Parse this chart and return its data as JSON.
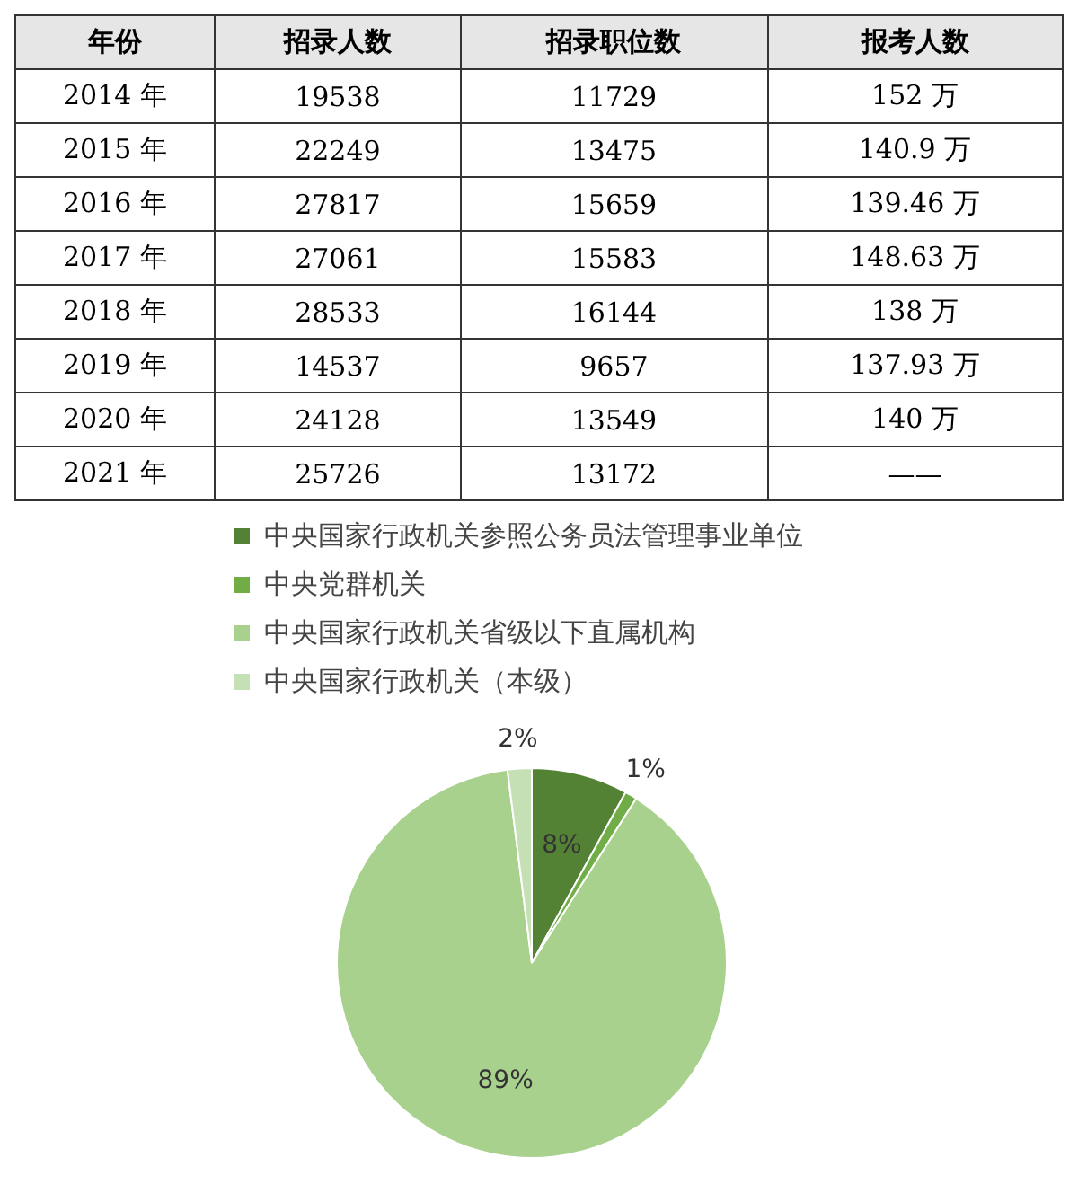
{
  "chart_data": [
    {
      "type": "heatmap",
      "ylabel": "年份",
      "categories": [
        "招录人数",
        "招录职位数",
        "报考人数"
      ],
      "y_categories": [
        "2014 年",
        "2015 年",
        "2016 年",
        "2017 年",
        "2018 年",
        "2019 年",
        "2020 年",
        "2021 年"
      ],
      "cells": [
        [
          19538,
          11729,
          152
        ],
        [
          22249,
          13475,
          140.9
        ],
        [
          27817,
          15659,
          139.46
        ],
        [
          27061,
          15583,
          148.63
        ],
        [
          28533,
          16144,
          138
        ],
        [
          14537,
          9657,
          137.93
        ],
        [
          24128,
          13549,
          140
        ],
        [
          25726,
          13172,
          null
        ]
      ],
      "cell_labels": [
        [
          "19538",
          "11729",
          "152 万"
        ],
        [
          "22249",
          "13475",
          "140.9 万"
        ],
        [
          "27817",
          "15659",
          "139.46 万"
        ],
        [
          "27061",
          "15583",
          "148.63 万"
        ],
        [
          "28533",
          "16144",
          "138 万"
        ],
        [
          "14537",
          "9657",
          "137.93 万"
        ],
        [
          "24128",
          "13549",
          "140 万"
        ],
        [
          "25726",
          "13172",
          "——"
        ]
      ]
    },
    {
      "type": "pie",
      "categories": [
        "中央国家行政机关参照公务员法管理事业单位",
        "中央党群机关",
        "中央国家行政机关省级以下直属机构",
        "中央国家行政机关（本级）"
      ],
      "values": [
        8,
        1,
        89,
        2
      ],
      "colors": [
        "#548235",
        "#70ad47",
        "#a9d18e",
        "#c5e0b4"
      ],
      "value_labels": [
        "8%",
        "1%",
        "89%",
        "2%"
      ],
      "legend": "top"
    }
  ]
}
